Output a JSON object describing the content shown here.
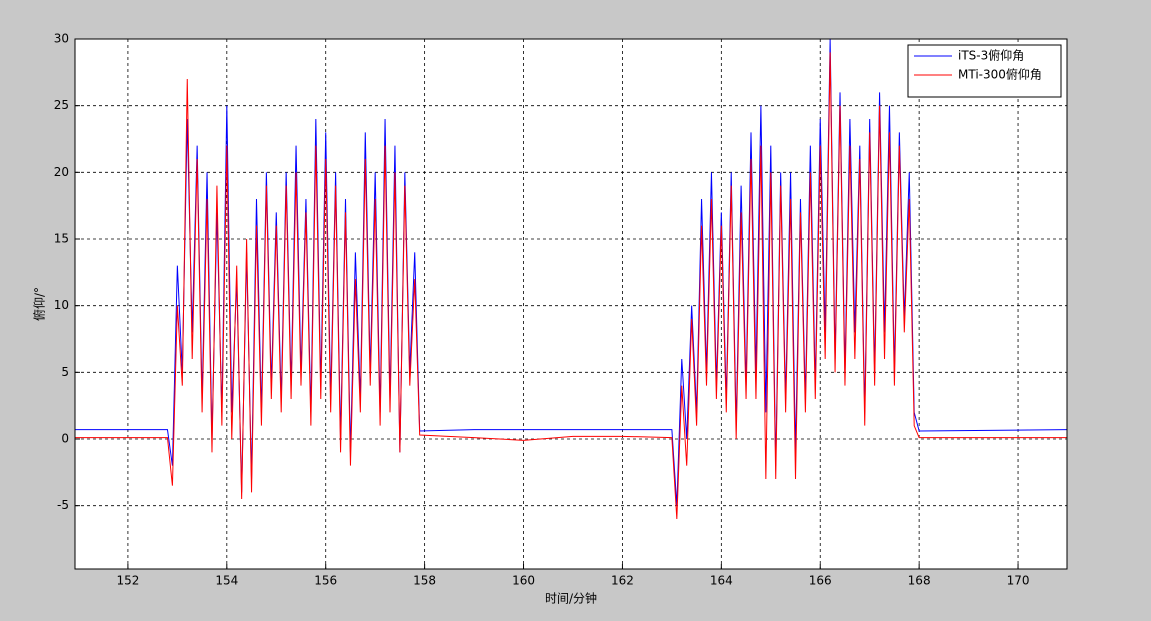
{
  "chart_data": {
    "type": "line",
    "x_label": "时间/分钟",
    "y_label": "俯仰/°",
    "xlim": [
      150.93,
      170.99
    ],
    "ylim": [
      -9.75,
      30
    ],
    "xticks": [
      152,
      154,
      156,
      158,
      160,
      162,
      164,
      166,
      168,
      170
    ],
    "yticks": [
      -5,
      0,
      5,
      10,
      15,
      20,
      25,
      30
    ],
    "grid": true,
    "legend": "upper right",
    "x": [
      150.93,
      152.8,
      152.9,
      153.0,
      153.1,
      153.2,
      153.3,
      153.4,
      153.5,
      153.6,
      153.7,
      153.8,
      153.9,
      154.0,
      154.1,
      154.2,
      154.3,
      154.4,
      154.5,
      154.6,
      154.7,
      154.8,
      154.9,
      155.0,
      155.1,
      155.2,
      155.3,
      155.4,
      155.5,
      155.6,
      155.7,
      155.8,
      155.9,
      156.0,
      156.1,
      156.2,
      156.3,
      156.4,
      156.5,
      156.6,
      156.7,
      156.8,
      156.9,
      157.0,
      157.1,
      157.2,
      157.3,
      157.4,
      157.5,
      157.6,
      157.7,
      157.8,
      157.9,
      159,
      160,
      161,
      162,
      163.0,
      163.1,
      163.2,
      163.3,
      163.4,
      163.5,
      163.6,
      163.7,
      163.8,
      163.9,
      164.0,
      164.1,
      164.2,
      164.3,
      164.4,
      164.5,
      164.6,
      164.7,
      164.8,
      164.9,
      165.0,
      165.1,
      165.2,
      165.3,
      165.4,
      165.5,
      165.6,
      165.7,
      165.8,
      165.9,
      166.0,
      166.1,
      166.2,
      166.3,
      166.4,
      166.5,
      166.6,
      166.7,
      166.8,
      166.9,
      167.0,
      167.1,
      167.2,
      167.3,
      167.4,
      167.5,
      167.6,
      167.7,
      167.8,
      167.9,
      168.0,
      170.99
    ],
    "series": [
      {
        "name": "iTS-3俯仰角",
        "color": "#0000ff",
        "values": [
          0.7,
          0.7,
          -2,
          13,
          5,
          24,
          8,
          22,
          3,
          20,
          0,
          17,
          2,
          25,
          2,
          12,
          -4,
          14,
          -3,
          18,
          2,
          20,
          4,
          17,
          3,
          20,
          4,
          22,
          5,
          18,
          2,
          24,
          4,
          23,
          3,
          20,
          0,
          18,
          -1,
          14,
          3,
          23,
          5,
          20,
          2,
          24,
          3,
          22,
          -1,
          20,
          5,
          14,
          0.6,
          0.7,
          0.7,
          0.7,
          0.7,
          0.7,
          -5,
          6,
          0,
          10,
          2,
          18,
          5,
          20,
          4,
          17,
          3,
          20,
          1,
          19,
          4,
          23,
          5,
          25,
          2,
          22,
          -2,
          20,
          3,
          20,
          -1,
          18,
          3,
          22,
          4,
          24,
          8,
          30,
          6,
          26,
          5,
          24,
          8,
          22,
          2,
          24,
          5,
          26,
          8,
          25,
          5,
          23,
          9,
          20,
          2,
          0.6,
          0.7
        ]
      },
      {
        "name": "MTi-300俯仰角",
        "color": "#ff0000",
        "values": [
          0.1,
          0.1,
          -3.5,
          10,
          4,
          27,
          6,
          21,
          2,
          18,
          -1,
          19,
          1,
          22,
          0,
          13,
          -4.5,
          15,
          -4,
          16,
          1,
          19,
          3,
          16,
          2,
          19,
          3,
          20,
          4,
          17,
          1,
          22,
          3,
          21,
          2,
          19,
          -1,
          17,
          -2,
          12,
          2,
          21,
          4,
          18,
          1,
          22,
          2,
          20,
          -1,
          19,
          4,
          12,
          0.3,
          0.1,
          -0.1,
          0.2,
          0.2,
          0.1,
          -6,
          4,
          -2,
          9,
          1,
          16,
          4,
          18,
          3,
          16,
          2,
          19,
          0,
          17,
          3,
          21,
          3,
          22,
          -3,
          20,
          -3,
          19,
          2,
          18,
          -3,
          17,
          2,
          20,
          3,
          22,
          6,
          29,
          5,
          25,
          4,
          22,
          6,
          21,
          1,
          23,
          4,
          25,
          6,
          23,
          4,
          22,
          8,
          18,
          1,
          0.1,
          0.1
        ]
      }
    ]
  }
}
